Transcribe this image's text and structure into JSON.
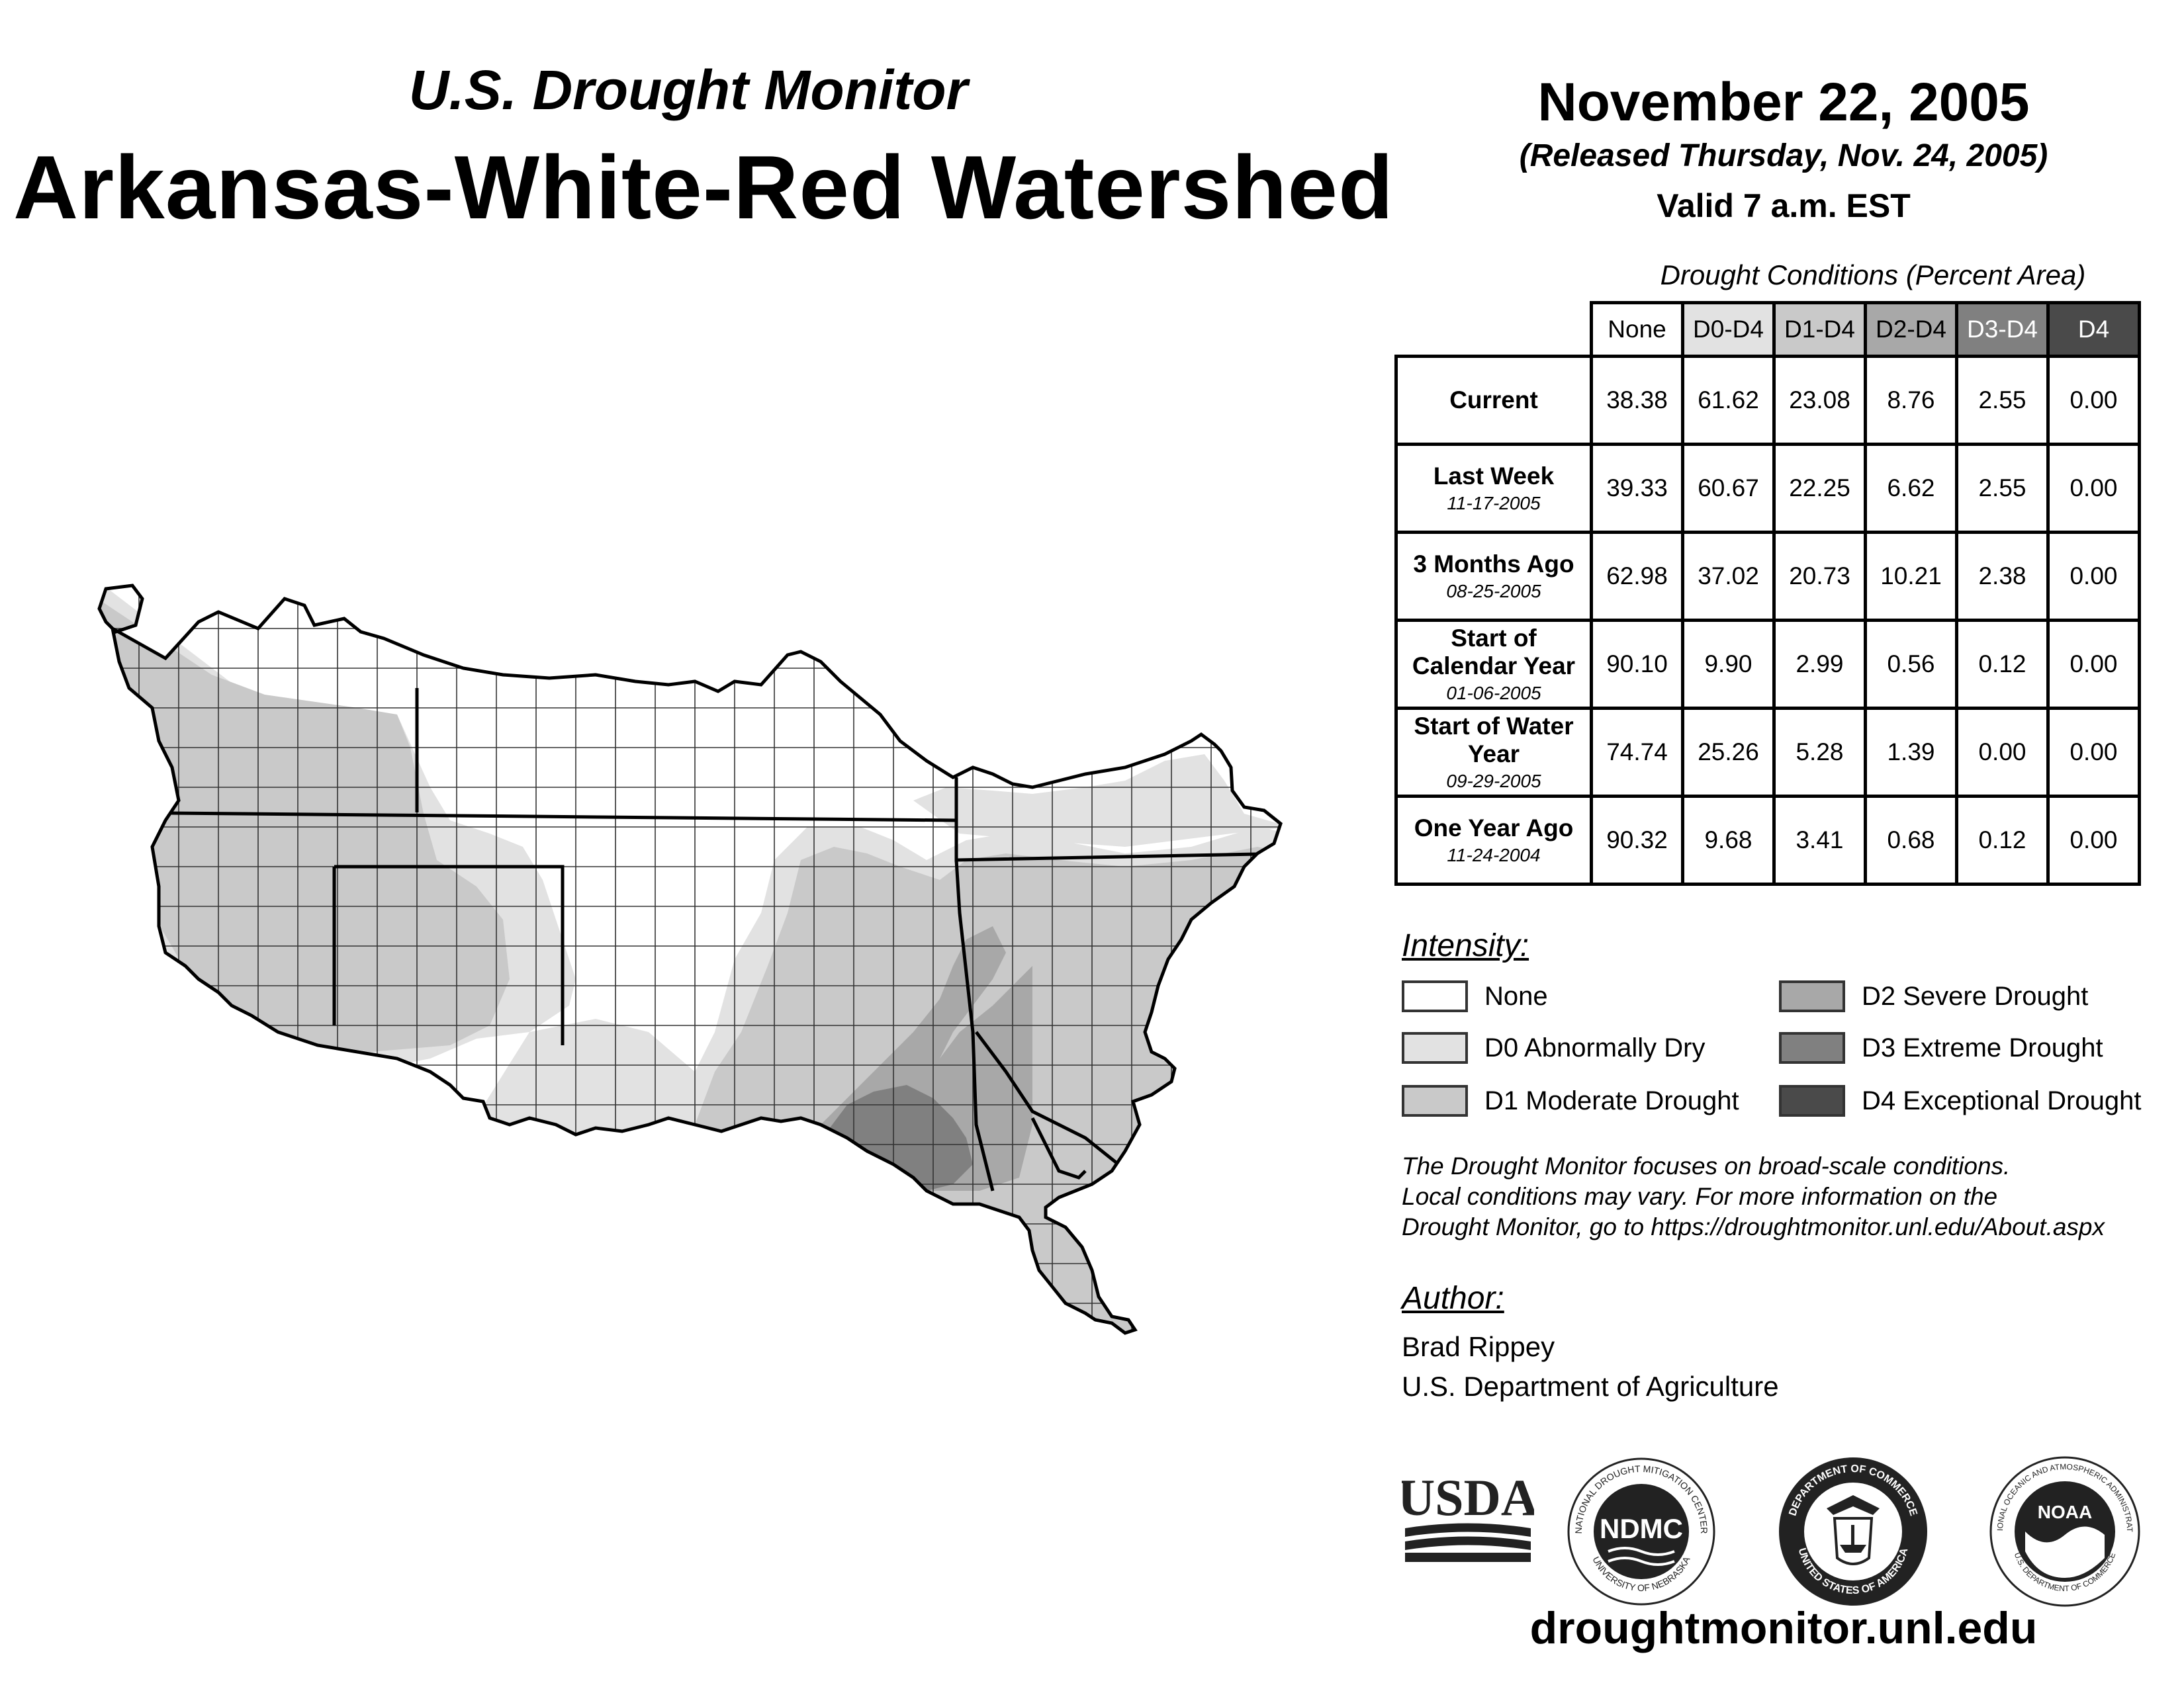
{
  "header": {
    "subtitle": "U.S. Drought Monitor",
    "title": "Arkansas-White-Red Watershed",
    "date": "November 22, 2005",
    "released": "(Released Thursday, Nov. 24, 2005)",
    "valid": "Valid 7 a.m. EST"
  },
  "table": {
    "caption": "Drought Conditions (Percent Area)",
    "columns": [
      "None",
      "D0-D4",
      "D1-D4",
      "D2-D4",
      "D3-D4",
      "D4"
    ],
    "rows": [
      {
        "label": "Current",
        "date": "",
        "values": [
          "38.38",
          "61.62",
          "23.08",
          "8.76",
          "2.55",
          "0.00"
        ]
      },
      {
        "label": "Last Week",
        "date": "11-17-2005",
        "values": [
          "39.33",
          "60.67",
          "22.25",
          "6.62",
          "2.55",
          "0.00"
        ]
      },
      {
        "label": "3 Months Ago",
        "date": "08-25-2005",
        "values": [
          "62.98",
          "37.02",
          "20.73",
          "10.21",
          "2.38",
          "0.00"
        ]
      },
      {
        "label": "Start of Calendar Year",
        "date": "01-06-2005",
        "values": [
          "90.10",
          "9.90",
          "2.99",
          "0.56",
          "0.12",
          "0.00"
        ]
      },
      {
        "label": "Start of Water Year",
        "date": "09-29-2005",
        "values": [
          "74.74",
          "25.26",
          "5.28",
          "1.39",
          "0.00",
          "0.00"
        ]
      },
      {
        "label": "One Year Ago",
        "date": "11-24-2004",
        "values": [
          "90.32",
          "9.68",
          "3.41",
          "0.68",
          "0.12",
          "0.00"
        ]
      }
    ]
  },
  "legend": {
    "title": "Intensity:",
    "items": [
      {
        "label": "None",
        "color": "#ffffff"
      },
      {
        "label": "D0 Abnormally Dry",
        "color": "#e2e2e2"
      },
      {
        "label": "D1 Moderate Drought",
        "color": "#c9c9c9"
      },
      {
        "label": "D2 Severe Drought",
        "color": "#a8a8a8"
      },
      {
        "label": "D3 Extreme Drought",
        "color": "#808080"
      },
      {
        "label": "D4 Exceptional Drought",
        "color": "#4a4a4a"
      }
    ]
  },
  "note": {
    "line1": "The Drought Monitor focuses on broad-scale conditions.",
    "line2": "Local conditions may vary. For more information on the",
    "line3": "Drought Monitor, go to https://droughtmonitor.unl.edu/About.aspx"
  },
  "author": {
    "title": "Author:",
    "name": "Brad Rippey",
    "org": "U.S. Department of Agriculture"
  },
  "logos": {
    "usda": "USDA",
    "ndmc": "NDMC",
    "ndmc_ring": "NATIONAL DROUGHT MITIGATION CENTER",
    "ndmc_ring_bottom": "UNIVERSITY OF NEBRASKA",
    "doc_ring": "DEPARTMENT OF COMMERCE",
    "doc_ring_bottom": "UNITED STATES OF AMERICA",
    "noaa": "NOAA",
    "noaa_ring": "NATIONAL OCEANIC AND ATMOSPHERIC ADMINISTRATION",
    "noaa_ring_bottom": "U.S. DEPARTMENT OF COMMERCE"
  },
  "footer": {
    "website": "droughtmonitor.unl.edu"
  }
}
